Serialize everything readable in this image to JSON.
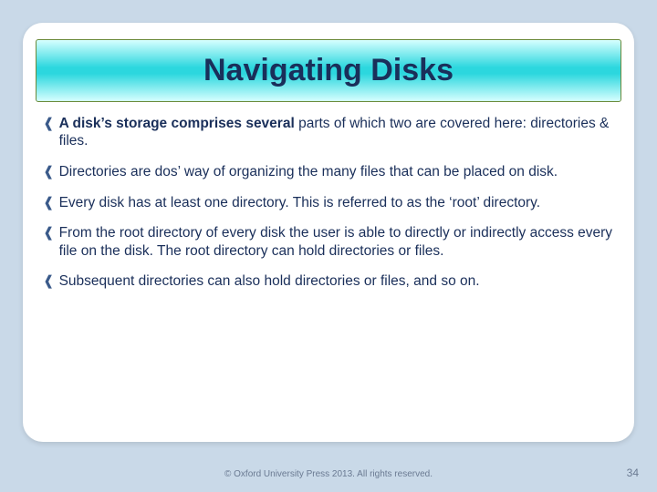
{
  "colors": {
    "page_bg": "#c9d9e8",
    "card_bg": "#ffffff",
    "title_text": "#1a2f5a",
    "body_text": "#1a2f5a",
    "footer_text": "#6a7a92",
    "title_gradient_top": "#d6ffff",
    "title_gradient_mid": "#2cd7de",
    "title_border": "#6a8a3a",
    "bullet_marker": "#3a5a8a"
  },
  "typography": {
    "title_fontsize": 34,
    "body_fontsize": 15.5,
    "footer_fontsize": 10,
    "pagenum_fontsize": 12,
    "font_family": "Verdana"
  },
  "title": "Navigating Disks",
  "bullet_marker_glyph": "❰",
  "bullets": [
    {
      "bold": "A disk’s storage comprises several",
      "rest": " parts of which two are covered here: directories & files."
    },
    {
      "bold": "",
      "rest": "Directories are dos’ way of organizing the many files that can be placed on disk."
    },
    {
      "bold": "",
      "rest": "Every disk has at least one directory. This is referred to as the ‘root’ directory."
    },
    {
      "bold": "",
      "rest": "From the root directory of every disk the user is able to directly or indirectly access every file on the disk. The root directory can hold directories or files."
    },
    {
      "bold": "",
      "rest": "Subsequent directories can also hold directories or files, and so on."
    }
  ],
  "footer": "© Oxford University Press 2013. All rights reserved.",
  "page_number": "34"
}
